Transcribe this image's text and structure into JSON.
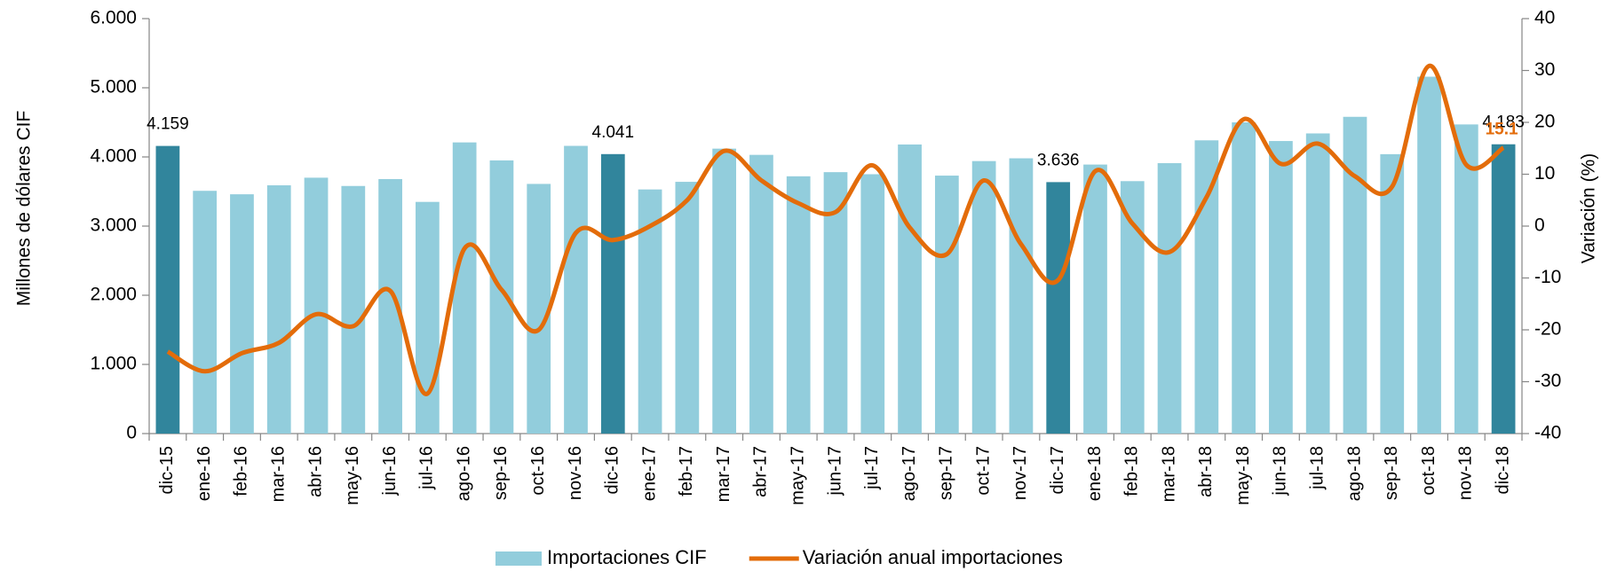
{
  "chart_data": {
    "type": "bar-line",
    "y_label": "Millones de dólares CIF",
    "y2_label": "Variación (%)",
    "categories": [
      "dic-15",
      "ene-16",
      "feb-16",
      "mar-16",
      "abr-16",
      "may-16",
      "jun-16",
      "jul-16",
      "ago-16",
      "sep-16",
      "oct-16",
      "nov-16",
      "dic-16",
      "ene-17",
      "feb-17",
      "mar-17",
      "abr-17",
      "may-17",
      "jun-17",
      "jul-17",
      "ago-17",
      "sep-17",
      "oct-17",
      "nov-17",
      "dic-17",
      "ene-18",
      "feb-18",
      "mar-18",
      "abr-18",
      "may-18",
      "jun-18",
      "jul-18",
      "ago-18",
      "sep-18",
      "oct-18",
      "nov-18",
      "dic-18"
    ],
    "ylim": [
      0,
      6000
    ],
    "yticks": [
      0,
      {
        "value": 1000,
        "label": "1.000"
      },
      {
        "value": 2000,
        "label": "2.000"
      },
      {
        "value": 3000,
        "label": "3.000"
      },
      {
        "value": 4000,
        "label": "4.000"
      },
      {
        "value": 5000,
        "label": "5.000"
      },
      {
        "value": 6000,
        "label": "6.000"
      }
    ],
    "y2lim": [
      -40,
      40
    ],
    "y2ticks": [
      -40,
      -30,
      -20,
      -10,
      0,
      10,
      20,
      30,
      40
    ],
    "series": [
      {
        "name": "Importaciones CIF",
        "type": "bar",
        "color": "#92cddc",
        "colors": [
          "#31859c",
          "#92cddc",
          "#92cddc",
          "#92cddc",
          "#92cddc",
          "#92cddc",
          "#92cddc",
          "#92cddc",
          "#92cddc",
          "#92cddc",
          "#92cddc",
          "#92cddc",
          "#31859c",
          "#92cddc",
          "#92cddc",
          "#92cddc",
          "#92cddc",
          "#92cddc",
          "#92cddc",
          "#92cddc",
          "#92cddc",
          "#92cddc",
          "#92cddc",
          "#92cddc",
          "#31859c",
          "#92cddc",
          "#92cddc",
          "#92cddc",
          "#92cddc",
          "#92cddc",
          "#92cddc",
          "#92cddc",
          "#92cddc",
          "#92cddc",
          "#92cddc",
          "#92cddc",
          "#31859c"
        ],
        "values": [
          4159,
          3510,
          3460,
          3590,
          3700,
          3580,
          3680,
          3350,
          4210,
          3950,
          3610,
          4160,
          4041,
          3530,
          3640,
          4120,
          4030,
          3720,
          3780,
          3750,
          4180,
          3730,
          3940,
          3980,
          3636,
          3890,
          3650,
          3910,
          4240,
          4500,
          4230,
          4340,
          4580,
          4040,
          5160,
          4470,
          4183
        ],
        "value_labels": [
          "4.159",
          null,
          null,
          null,
          null,
          null,
          null,
          null,
          null,
          null,
          null,
          null,
          "4.041",
          null,
          null,
          null,
          null,
          null,
          null,
          null,
          null,
          null,
          null,
          null,
          "3.636",
          null,
          null,
          null,
          null,
          null,
          null,
          null,
          null,
          null,
          null,
          null,
          "4.183"
        ]
      },
      {
        "name": "Variación anual importaciones",
        "type": "line",
        "axis": "y2",
        "color": "#e36c0a",
        "values": [
          -24.2,
          -28,
          -24.5,
          -22.5,
          -17,
          -19.3,
          -12.5,
          -32.3,
          -4.3,
          -12.3,
          -20,
          -1.3,
          -2.7,
          0,
          5,
          14.5,
          8.8,
          4.4,
          2.7,
          11.7,
          -0.3,
          -5.4,
          8.8,
          -3.5,
          -10.4,
          10.6,
          0.5,
          -5,
          5.6,
          20.6,
          12,
          15.9,
          9.6,
          7.6,
          30.9,
          11.8,
          15.1
        ],
        "value_labels": [
          null,
          null,
          null,
          null,
          null,
          null,
          null,
          null,
          null,
          null,
          null,
          null,
          null,
          null,
          null,
          null,
          null,
          null,
          null,
          null,
          null,
          null,
          null,
          null,
          null,
          null,
          null,
          null,
          null,
          null,
          null,
          null,
          null,
          null,
          null,
          null,
          "15.1"
        ]
      }
    ]
  }
}
